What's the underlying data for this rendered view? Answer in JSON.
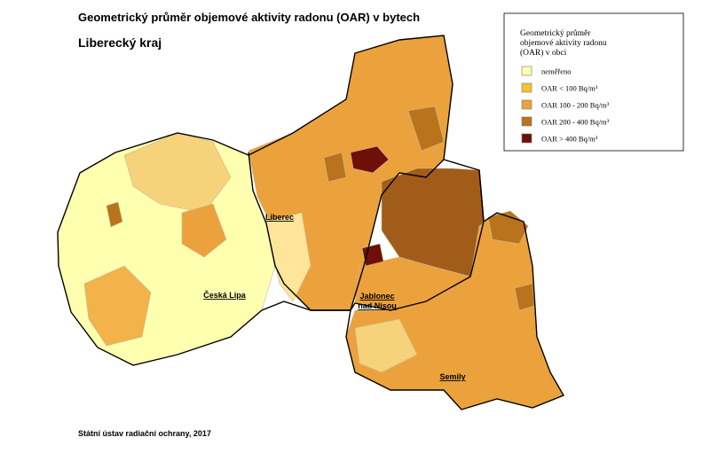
{
  "header": {
    "title": "Geometrický průměr objemové aktivity radonu (OAR) v bytech",
    "subtitle": "Liberecký kraj"
  },
  "legend": {
    "title": [
      "Geometrický průměr",
      "objemové aktivity radonu",
      "(OAR) v obci"
    ],
    "items": [
      {
        "label": "neměřeno",
        "color": "#ffffb0"
      },
      {
        "label": "OAR  <  100  Bq/m³",
        "color": "#f6c22e"
      },
      {
        "label": "OAR  100 - 200  Bq/m³",
        "color": "#eba23c"
      },
      {
        "label": "OAR  200 - 400  Bq/m³",
        "color": "#b8731c"
      },
      {
        "label": "OAR  >  400  Bq/m³",
        "color": "#6e1008"
      }
    ]
  },
  "districts": [
    {
      "lines": [
        "Liberec"
      ]
    },
    {
      "lines": [
        "Česká Lípa"
      ]
    },
    {
      "lines": [
        "Jablonec",
        "nad Nisou"
      ]
    },
    {
      "lines": [
        "Semily"
      ]
    }
  ],
  "source": "Státní ústav radiační ochrany, 2017"
}
